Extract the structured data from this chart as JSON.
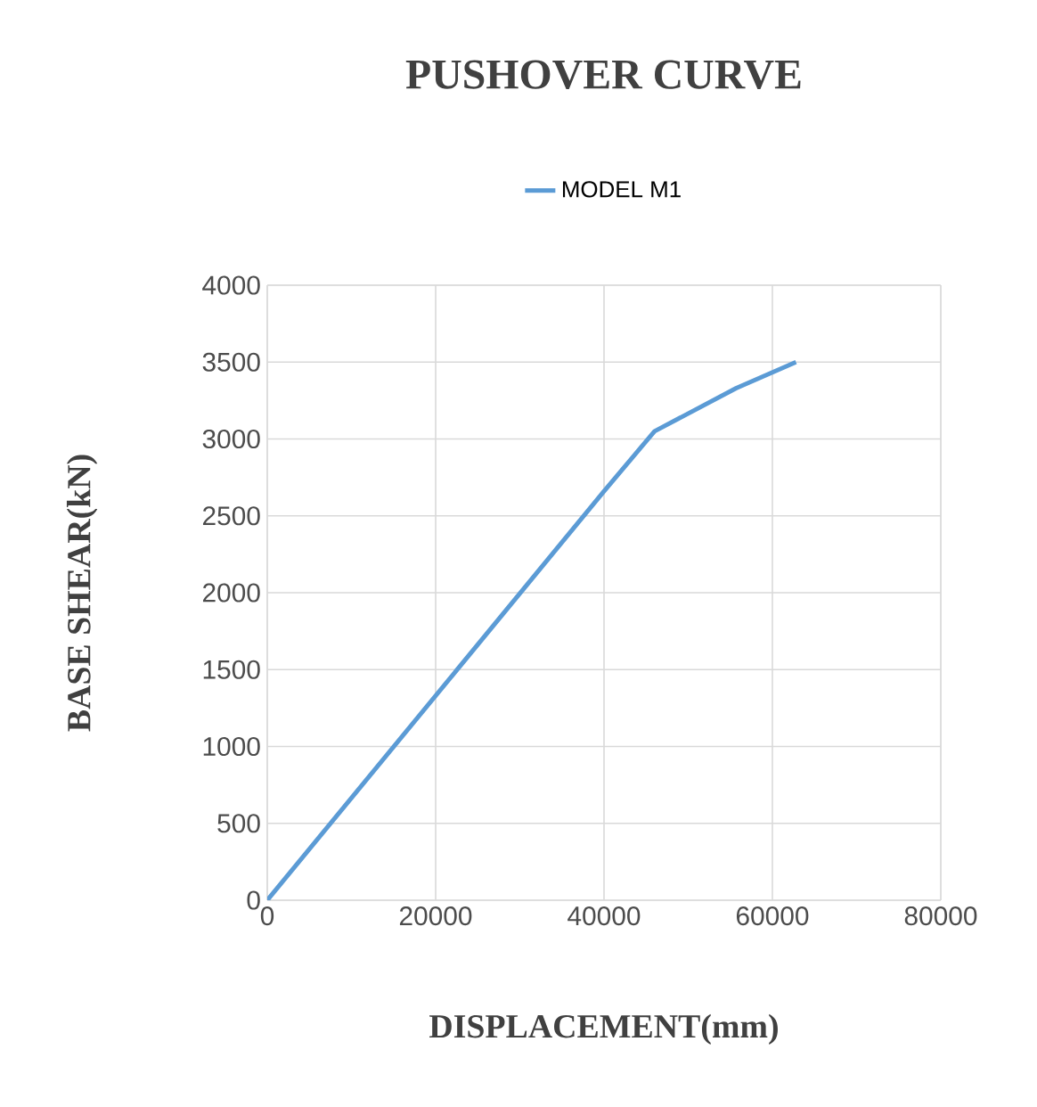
{
  "chart_data": {
    "type": "line",
    "title": "PUSHOVER CURVE",
    "xlabel": "DISPLACEMENT(mm)",
    "ylabel": "BASE SHEAR(kN)",
    "x": [
      0,
      40000,
      46000,
      55700,
      62800
    ],
    "series": [
      {
        "name": "MODEL M1",
        "color": "#5b9bd5",
        "values": [
          0,
          2660,
          3050,
          3330,
          3500
        ]
      }
    ],
    "xlim": [
      0,
      80000
    ],
    "xticks": [
      0,
      20000,
      40000,
      60000,
      80000
    ],
    "ylim": [
      0,
      4000
    ],
    "yticks": [
      0,
      500,
      1000,
      1500,
      2000,
      2500,
      3000,
      3500,
      4000
    ],
    "grid": true,
    "legend": "top",
    "marker": "none",
    "line_style": "solid"
  }
}
